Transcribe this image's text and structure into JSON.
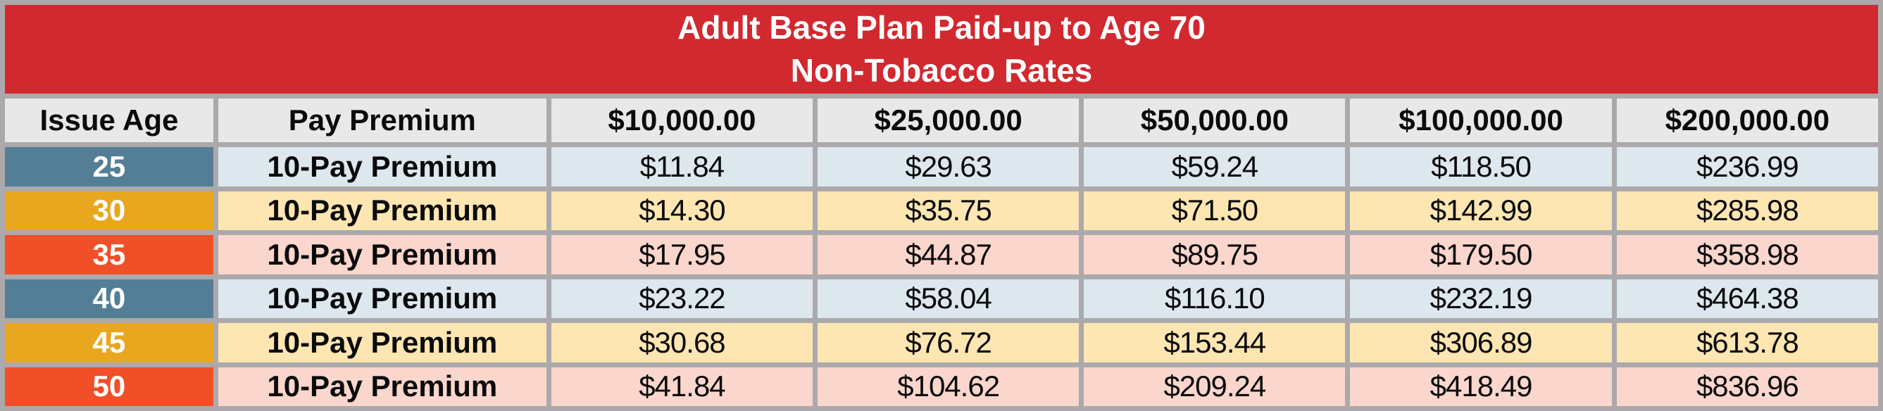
{
  "title": {
    "line1": "Adult Base Plan Paid-up to Age 70",
    "line2": "Non-Tobacco Rates"
  },
  "table": {
    "columns": [
      "Issue Age",
      "Pay Premium",
      "$10,000.00",
      "$25,000.00",
      "$50,000.00",
      "$100,000.00",
      "$200,000.00"
    ],
    "rows": [
      {
        "issue_age": "25",
        "pay_premium": "10-Pay Premium",
        "theme": "blue",
        "values": [
          "$11.84",
          "$29.63",
          "$59.24",
          "$118.50",
          "$236.99"
        ]
      },
      {
        "issue_age": "30",
        "pay_premium": "10-Pay Premium",
        "theme": "amber",
        "values": [
          "$14.30",
          "$35.75",
          "$71.50",
          "$142.99",
          "$285.98"
        ]
      },
      {
        "issue_age": "35",
        "pay_premium": "10-Pay Premium",
        "theme": "red",
        "values": [
          "$17.95",
          "$44.87",
          "$89.75",
          "$179.50",
          "$358.98"
        ]
      },
      {
        "issue_age": "40",
        "pay_premium": "10-Pay Premium",
        "theme": "blue",
        "values": [
          "$23.22",
          "$58.04",
          "$116.10",
          "$232.19",
          "$464.38"
        ]
      },
      {
        "issue_age": "45",
        "pay_premium": "10-Pay Premium",
        "theme": "amber",
        "values": [
          "$30.68",
          "$76.72",
          "$153.44",
          "$306.89",
          "$613.78"
        ]
      },
      {
        "issue_age": "50",
        "pay_premium": "10-Pay Premium",
        "theme": "red",
        "values": [
          "$41.84",
          "$104.62",
          "$209.24",
          "$418.49",
          "$836.96"
        ]
      }
    ]
  },
  "colors": {
    "banner_red": "#D1292F",
    "border_gray": "#ABA9AB",
    "header_bg": "#E9E8E8",
    "age_blue": "#547E96",
    "age_amber": "#E9A720",
    "age_red": "#F04F28",
    "row_blue": "#DCE7EE",
    "row_amber": "#FDE6B2",
    "row_red": "#FAD6CD"
  }
}
